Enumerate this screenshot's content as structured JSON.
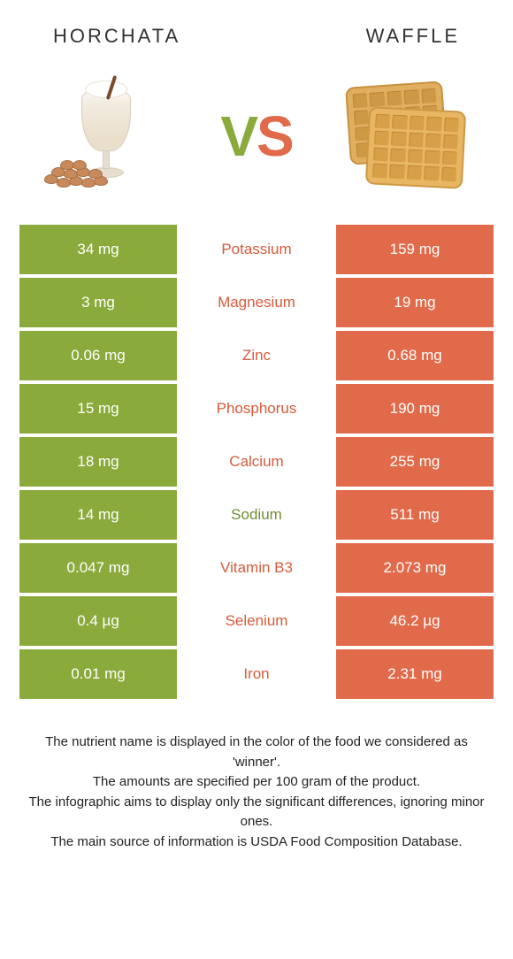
{
  "colors": {
    "left": "#8aaa3b",
    "right": "#e06a4a",
    "leftText": "#6f8f2e",
    "rightText": "#d85a3a",
    "bg": "#ffffff"
  },
  "titles": {
    "left": "Horchata",
    "right": "Waffle"
  },
  "vs": {
    "v": "V",
    "s": "S"
  },
  "rows": [
    {
      "left": "34 mg",
      "label": "Potassium",
      "right": "159 mg",
      "winner": "right"
    },
    {
      "left": "3 mg",
      "label": "Magnesium",
      "right": "19 mg",
      "winner": "right"
    },
    {
      "left": "0.06 mg",
      "label": "Zinc",
      "right": "0.68 mg",
      "winner": "right"
    },
    {
      "left": "15 mg",
      "label": "Phosphorus",
      "right": "190 mg",
      "winner": "right"
    },
    {
      "left": "18 mg",
      "label": "Calcium",
      "right": "255 mg",
      "winner": "right"
    },
    {
      "left": "14 mg",
      "label": "Sodium",
      "right": "511 mg",
      "winner": "left"
    },
    {
      "left": "0.047 mg",
      "label": "Vitamin B3",
      "right": "2.073 mg",
      "winner": "right"
    },
    {
      "left": "0.4 µg",
      "label": "Selenium",
      "right": "46.2 µg",
      "winner": "right"
    },
    {
      "left": "0.01 mg",
      "label": "Iron",
      "right": "2.31 mg",
      "winner": "right"
    }
  ],
  "footer": {
    "l1": "The nutrient name is displayed in the color of the food we considered as 'winner'.",
    "l2": "The amounts are specified per 100 gram of the product.",
    "l3": "The infographic aims to display only the significant differences, ignoring minor ones.",
    "l4": "The main source of information is USDA Food Composition Database."
  }
}
